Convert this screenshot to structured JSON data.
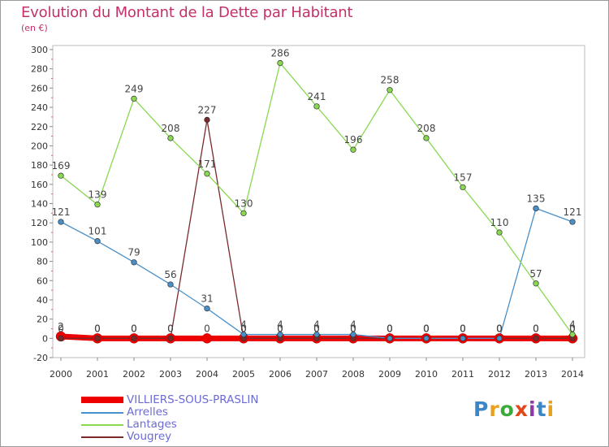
{
  "header": {
    "title": "Evolution du Montant de la Dette par Habitant",
    "subtitle": "(en €)"
  },
  "logo": {
    "letters": [
      "P",
      "r",
      "o",
      "x",
      "i",
      "t",
      "i"
    ],
    "colors": [
      "#3a86c8",
      "#e8a020",
      "#3aaa3a",
      "#e0481c",
      "#8c3aa8",
      "#3a86c8",
      "#e8a020"
    ]
  },
  "chart_data": {
    "type": "line",
    "title": "Evolution du Montant de la Dette par Habitant",
    "ylabel": "(en €)",
    "xlabel": "",
    "ylim": [
      -20,
      300
    ],
    "ytick_step": 20,
    "grid": false,
    "legend_position": "bottom-left",
    "x": [
      "2000",
      "2001",
      "2002",
      "2003",
      "2004",
      "2005",
      "2006",
      "2007",
      "2008",
      "2009",
      "2010",
      "2011",
      "2012",
      "2013",
      "2014"
    ],
    "series": [
      {
        "name": "VILLIERS-SOUS-PRASLIN",
        "color": "#ee0000",
        "values": [
          2,
          0,
          0,
          0,
          0,
          0,
          0,
          0,
          0,
          0,
          0,
          0,
          0,
          0,
          0
        ],
        "labels": [
          "2",
          "0",
          "0",
          "0",
          "0",
          "0",
          "0",
          "0",
          "0",
          "0",
          "0",
          "0",
          "0",
          "0",
          "0"
        ]
      },
      {
        "name": "Arrelles",
        "color": "#4a90c8",
        "values": [
          121,
          101,
          79,
          56,
          31,
          4,
          4,
          4,
          4,
          0,
          0,
          0,
          0,
          135,
          121
        ],
        "labels": [
          "121",
          "101",
          "79",
          "56",
          "31",
          "4",
          "4",
          "4",
          "4",
          "0",
          "0",
          "0",
          "0",
          "135",
          "121"
        ]
      },
      {
        "name": "Lantages",
        "color": "#88d850",
        "values": [
          169,
          139,
          249,
          208,
          171,
          130,
          286,
          241,
          196,
          258,
          208,
          157,
          110,
          57,
          4
        ],
        "labels": [
          "169",
          "139",
          "249",
          "208",
          "171",
          "130",
          "286",
          "241",
          "196",
          "258",
          "208",
          "157",
          "110",
          "57",
          "4"
        ]
      },
      {
        "name": "Vougrey",
        "color": "#7a2a2a",
        "values": [
          0,
          0,
          0,
          0,
          227,
          0,
          0,
          0,
          0,
          0,
          0,
          0,
          0,
          0,
          0
        ],
        "labels": [
          "0",
          "0",
          "0",
          "0",
          "227",
          "0",
          "0",
          "0",
          "0",
          "0",
          "0",
          "0",
          "0",
          "0",
          "0"
        ]
      }
    ]
  }
}
